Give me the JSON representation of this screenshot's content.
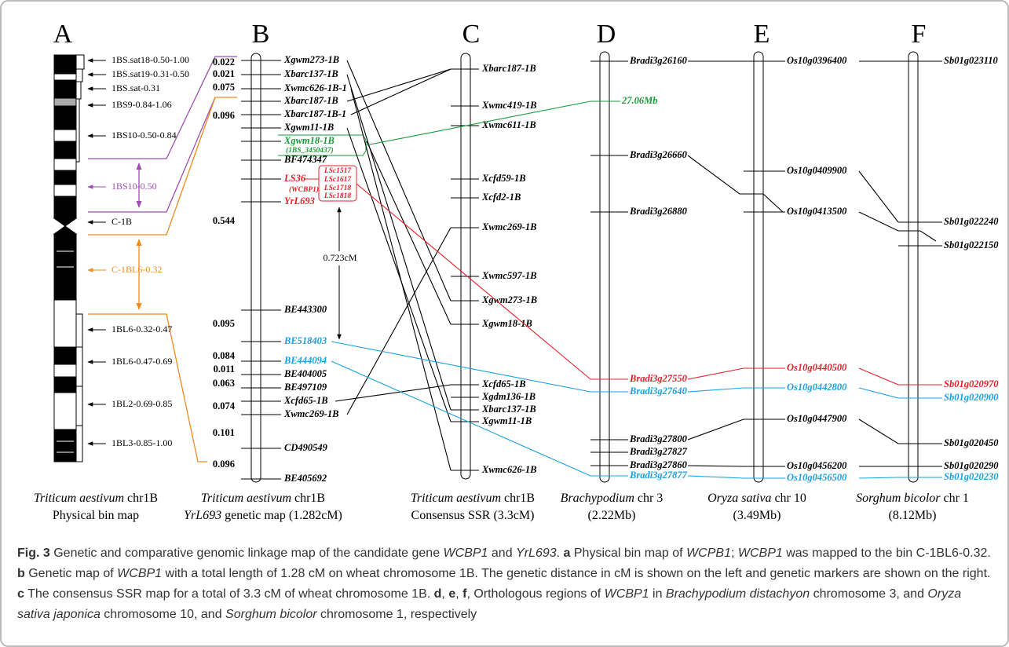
{
  "panel_a": {
    "letter": "A",
    "bins": [
      "1BS.sat18-0.50-1.00",
      "1BS.sat19-0.31-0.50",
      "1BS.sat-0.31",
      "1BS9-0.84-1.06",
      "1BS10-0.50-0.84",
      "1BS10-0.50",
      "C-1B",
      "C-1BL6-0.32",
      "1BL6-0.32-0.47",
      "1BL6-0.47-0.69",
      "1BL2-0.69-0.85",
      "1BL3-0.85-1.00"
    ],
    "caption": {
      "species": "Triticum aestivum",
      "chromosome": "chr1B",
      "description": "Physical bin map"
    }
  },
  "panel_b": {
    "letter": "B",
    "distances": [
      0.022,
      0.021,
      0.075,
      0.096,
      0.544,
      0.095,
      0.084,
      0.011,
      0.063,
      0.074,
      0.101,
      0.096
    ],
    "markers": [
      "Xgwm273-1B",
      "Xbarc137-1B",
      "Xwmc626-1B-1",
      "Xbarc187-1B",
      "Xbarc187-1B-1",
      "Xgwm11-1B",
      "Xgwm18-1B",
      "BF474347",
      "LS36",
      "YrL693",
      "BE443300",
      "BE518403",
      "BE444094",
      "BE404005",
      "BE497109",
      "Xcfd65-1B",
      "Xwmc269-1B",
      "CD490549",
      "BE405692"
    ],
    "xgwm18_note": "(1BS_3450437)",
    "ls36_gene": "(WCBP1)",
    "ls36_contigs": [
      "LSc1517",
      "LSc1617",
      "LSc1718",
      "LSc1818"
    ],
    "interval": "0.723cM",
    "caption": {
      "species": "Triticum aestivum",
      "chromosome": "chr1B",
      "gene": "YrL693",
      "description": "genetic map (1.282cM)"
    }
  },
  "panel_c": {
    "letter": "C",
    "markers": [
      "Xbarc187-1B",
      "Xwmc419-1B",
      "Xwmc611-1B",
      "Xcfd59-1B",
      "Xcfd2-1B",
      "Xwmc269-1B",
      "Xwmc597-1B",
      "Xgwm273-1B",
      "Xgwm18-1B",
      "Xcfd65-1B",
      "Xgdm136-1B",
      "Xbarc137-1B",
      "Xgwm11-1B",
      "Xwmc626-1B"
    ],
    "caption": {
      "species": "Triticum aestivum",
      "chromosome": "chr1B",
      "description": "Consensus SSR (3.3cM)"
    }
  },
  "panel_d": {
    "letter": "D",
    "markers": [
      "Bradi3g26160",
      "Bradi3g26660",
      "Bradi3g26880",
      "Bradi3g27550",
      "Bradi3g27640",
      "Bradi3g27800",
      "Bradi3g27827",
      "Bradi3g27860",
      "Bradi3g27877"
    ],
    "position_label": "27.06Mb",
    "caption": {
      "species": "Brachypodium",
      "chromosome": "chr 3",
      "size": "(2.22Mb)"
    }
  },
  "panel_e": {
    "letter": "E",
    "markers": [
      "Os10g0396400",
      "Os10g0409900",
      "Os10g0413500",
      "Os10g0440500",
      "Os10g0442800",
      "Os10g0447900",
      "Os10g0456200",
      "Os10g0456500"
    ],
    "caption": {
      "species": "Oryza sativa",
      "chromosome": "chr 10",
      "size": "(3.49Mb)"
    }
  },
  "panel_f": {
    "letter": "F",
    "markers": [
      "Sb01g023110",
      "Sb01g022240",
      "Sb01g022150",
      "Sb01g020970",
      "Sb01g020900",
      "Sb01g020450",
      "Sb01g020290",
      "Sb01g020230"
    ],
    "caption": {
      "species": "Sorghum bicolor",
      "chromosome": "chr 1",
      "size": "(8.12Mb)"
    }
  },
  "figure_caption": [
    {
      "text": "Fig. 3",
      "style": "bold"
    },
    {
      "text": " Genetic and comparative genomic linkage map of the candidate gene "
    },
    {
      "text": "WCBP1",
      "style": "italic"
    },
    {
      "text": " and "
    },
    {
      "text": "YrL693",
      "style": "italic"
    },
    {
      "text": ". "
    },
    {
      "text": "a",
      "style": "bold"
    },
    {
      "text": " Physical bin map of "
    },
    {
      "text": "WCPB1",
      "style": "italic"
    },
    {
      "text": "; "
    },
    {
      "text": "WCBP1",
      "style": "italic"
    },
    {
      "text": " was mapped to the bin C-1BL6-0.32. "
    },
    {
      "text": "b",
      "style": "bold"
    },
    {
      "text": " Genetic map of "
    },
    {
      "text": "WCBP1",
      "style": "italic"
    },
    {
      "text": " with a total length of 1.28 cM on wheat chromosome 1B. The genetic distance in cM is shown on the left and genetic markers are shown on the right. "
    },
    {
      "text": "c",
      "style": "bold"
    },
    {
      "text": " The consensus SSR map for a total of 3.3 cM of wheat chromosome 1B. "
    },
    {
      "text": "d",
      "style": "bold"
    },
    {
      "text": ", "
    },
    {
      "text": "e",
      "style": "bold"
    },
    {
      "text": ", "
    },
    {
      "text": "f",
      "style": "bold"
    },
    {
      "text": ", Orthologous regions of "
    },
    {
      "text": "WCBP1",
      "style": "italic"
    },
    {
      "text": " in "
    },
    {
      "text": "Brachypodium distachyon",
      "style": "italic"
    },
    {
      "text": " chromosome 3, and "
    },
    {
      "text": "Oryza sativa japonica",
      "style": "italic"
    },
    {
      "text": " chromosome 10, and "
    },
    {
      "text": "Sorghum bicolor",
      "style": "italic"
    },
    {
      "text": " chromosome 1, respectively"
    }
  ]
}
